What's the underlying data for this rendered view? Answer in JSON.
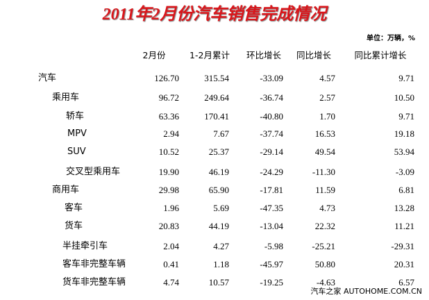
{
  "header": {
    "title": "2011年2月份汽车销售完成情况",
    "unit": "单位：万辆，%"
  },
  "table": {
    "columns": [
      "2月份",
      "1-2月累计",
      "环比增长",
      "同比增长",
      "同比累计增长"
    ],
    "rows": [
      [
        "汽车",
        "126.70",
        "315.54",
        "-33.09",
        "4.57",
        "9.71"
      ],
      [
        "乘用车",
        "96.72",
        "249.64",
        "-36.74",
        "2.57",
        "10.50"
      ],
      [
        "轿车",
        "63.36",
        "170.41",
        "-40.80",
        "1.70",
        "9.71"
      ],
      [
        "MPV",
        "2.94",
        "7.67",
        "-37.74",
        "16.53",
        "19.18"
      ],
      [
        "SUV",
        "10.52",
        "25.37",
        "-29.14",
        "49.54",
        "53.94"
      ],
      [
        "交叉型乘用车",
        "19.90",
        "46.19",
        "-24.29",
        "-11.30",
        "-3.09"
      ],
      [
        "商用车",
        "29.98",
        "65.90",
        "-17.81",
        "11.59",
        "6.81"
      ],
      [
        "客车",
        "1.96",
        "5.69",
        "-47.35",
        "4.73",
        "13.28"
      ],
      [
        "货车",
        "20.83",
        "44.19",
        "-13.04",
        "22.32",
        "11.21"
      ],
      [
        "半挂牵引车",
        "2.04",
        "4.27",
        "-5.98",
        "-25.21",
        "-29.31"
      ],
      [
        "客车非完整车辆",
        "0.41",
        "1.18",
        "-45.97",
        "50.80",
        "20.31"
      ],
      [
        "货车非完整车辆",
        "4.74",
        "10.57",
        "-19.25",
        "-4.63",
        "6.57"
      ]
    ]
  },
  "watermark": {
    "cn": "汽车之家",
    "en": "AUTOHOME.COM.CN"
  }
}
